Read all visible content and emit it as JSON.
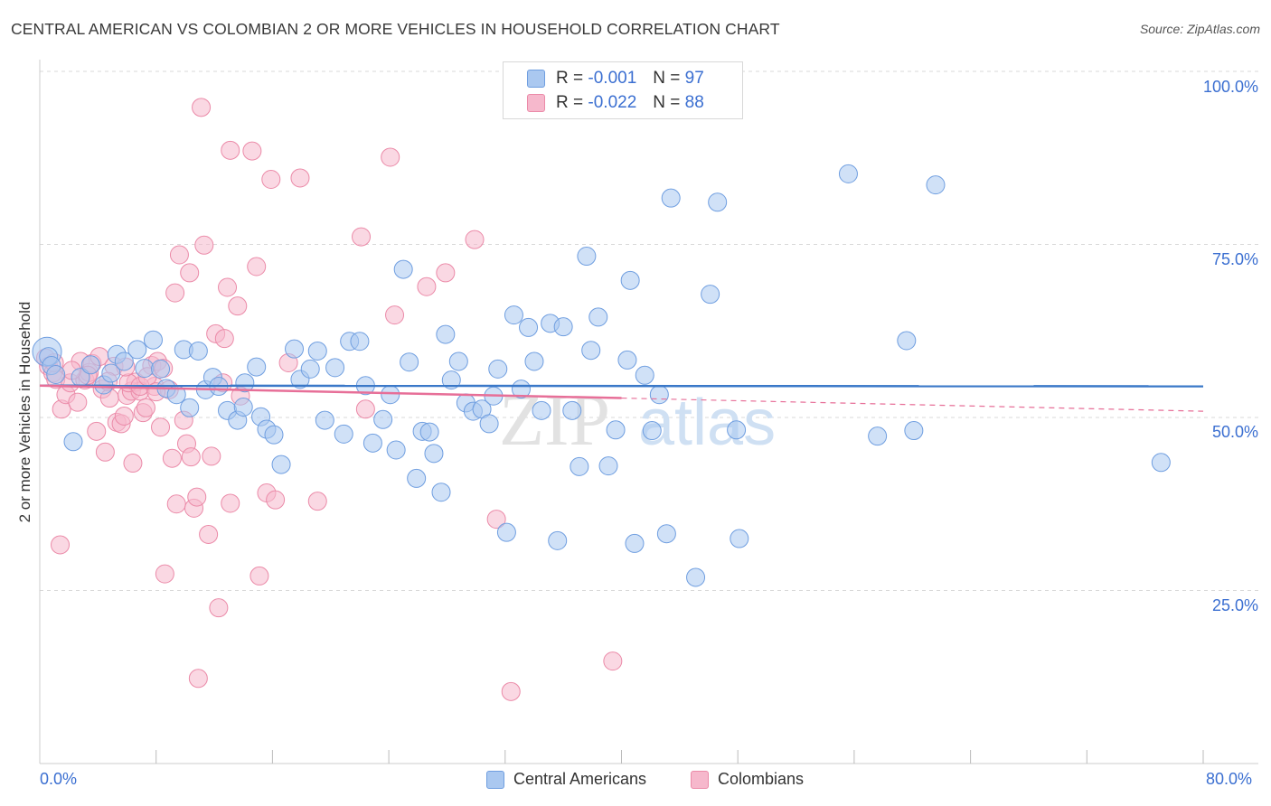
{
  "title": "CENTRAL AMERICAN VS COLOMBIAN 2 OR MORE VEHICLES IN HOUSEHOLD CORRELATION CHART",
  "source": "Source: ZipAtlas.com",
  "legend": {
    "rows": [
      {
        "r_label": "R = ",
        "r_value": "-0.001",
        "n_label": "N = ",
        "n_value": "97"
      },
      {
        "r_label": "R = ",
        "r_value": "-0.022",
        "n_label": "N = ",
        "n_value": "88"
      }
    ]
  },
  "watermark": {
    "part1": "ZIP",
    "part2": "atlas"
  },
  "colors": {
    "blue_fill": "#aac8f0",
    "blue_stroke": "#6f9ee0",
    "blue_line": "#3a78c8",
    "pink_fill": "#f6b8cc",
    "pink_stroke": "#eb8aa8",
    "pink_line": "#e76f98",
    "axis_text": "#3b6fd1",
    "grid": "#d9d9d9"
  },
  "chart_data": {
    "type": "scatter",
    "title": "CENTRAL AMERICAN VS COLOMBIAN 2 OR MORE VEHICLES IN HOUSEHOLD CORRELATION CHART",
    "xlabel": "",
    "ylabel": "2 or more Vehicles in Household",
    "xlim": [
      0,
      80
    ],
    "ylim": [
      0,
      100
    ],
    "x_tick_labels": [
      "0.0%",
      "80.0%"
    ],
    "y_tick_labels": [
      "100.0%",
      "75.0%",
      "50.0%",
      "25.0%"
    ],
    "y_tick_values": [
      100,
      75,
      50,
      25
    ],
    "grid": true,
    "legend_position": "top-center",
    "series": [
      {
        "name": "Central Americans",
        "color": "#aac8f0",
        "trend": {
          "x": [
            0,
            80
          ],
          "y": [
            54.6,
            54.5
          ]
        },
        "points": [
          [
            0.5,
            59.5
          ],
          [
            0.6,
            58.8
          ],
          [
            0.8,
            57.5
          ],
          [
            1.1,
            56.2
          ],
          [
            2.3,
            46.5
          ],
          [
            2.8,
            55.8
          ],
          [
            3.5,
            57.6
          ],
          [
            4.4,
            54.7
          ],
          [
            4.9,
            56.4
          ],
          [
            5.3,
            59.1
          ],
          [
            5.8,
            58.1
          ],
          [
            6.7,
            59.8
          ],
          [
            7.2,
            57.1
          ],
          [
            7.8,
            61.2
          ],
          [
            8.3,
            57.0
          ],
          [
            8.7,
            54.2
          ],
          [
            9.4,
            53.3
          ],
          [
            9.9,
            59.8
          ],
          [
            10.3,
            51.4
          ],
          [
            10.9,
            59.6
          ],
          [
            11.4,
            54.0
          ],
          [
            11.9,
            55.8
          ],
          [
            12.3,
            54.5
          ],
          [
            12.9,
            51.0
          ],
          [
            13.6,
            49.6
          ],
          [
            14.0,
            51.5
          ],
          [
            14.9,
            57.3
          ],
          [
            15.2,
            50.1
          ],
          [
            15.6,
            48.3
          ],
          [
            16.1,
            47.5
          ],
          [
            16.6,
            43.2
          ],
          [
            17.5,
            59.9
          ],
          [
            17.9,
            55.5
          ],
          [
            18.6,
            57.0
          ],
          [
            19.1,
            59.6
          ],
          [
            19.6,
            49.6
          ],
          [
            20.3,
            57.2
          ],
          [
            20.9,
            47.6
          ],
          [
            21.3,
            61.0
          ],
          [
            22.0,
            61.0
          ],
          [
            22.4,
            54.6
          ],
          [
            22.9,
            46.3
          ],
          [
            23.6,
            49.7
          ],
          [
            24.1,
            53.3
          ],
          [
            24.5,
            45.3
          ],
          [
            25.0,
            71.4
          ],
          [
            25.4,
            58.0
          ],
          [
            25.9,
            41.2
          ],
          [
            26.3,
            48.0
          ],
          [
            26.8,
            47.9
          ],
          [
            27.1,
            44.8
          ],
          [
            27.6,
            39.2
          ],
          [
            27.9,
            62.0
          ],
          [
            28.3,
            55.4
          ],
          [
            28.8,
            58.1
          ],
          [
            29.3,
            52.1
          ],
          [
            29.8,
            50.9
          ],
          [
            30.4,
            51.2
          ],
          [
            30.9,
            49.1
          ],
          [
            31.2,
            53.1
          ],
          [
            31.5,
            57.0
          ],
          [
            32.1,
            33.4
          ],
          [
            32.6,
            64.8
          ],
          [
            33.1,
            54.1
          ],
          [
            33.6,
            63.0
          ],
          [
            34.0,
            58.1
          ],
          [
            34.5,
            51.0
          ],
          [
            35.1,
            63.6
          ],
          [
            35.6,
            32.2
          ],
          [
            36.0,
            63.1
          ],
          [
            36.6,
            51.0
          ],
          [
            37.1,
            42.9
          ],
          [
            37.6,
            73.3
          ],
          [
            37.9,
            59.7
          ],
          [
            38.4,
            64.5
          ],
          [
            39.1,
            43.0
          ],
          [
            39.6,
            48.2
          ],
          [
            40.4,
            58.3
          ],
          [
            40.6,
            69.8
          ],
          [
            40.9,
            31.8
          ],
          [
            41.6,
            56.1
          ],
          [
            42.1,
            48.1
          ],
          [
            42.6,
            53.3
          ],
          [
            43.1,
            33.2
          ],
          [
            43.4,
            81.7
          ],
          [
            45.1,
            26.9
          ],
          [
            46.1,
            67.8
          ],
          [
            46.6,
            81.1
          ],
          [
            47.9,
            48.2
          ],
          [
            48.1,
            32.5
          ],
          [
            55.6,
            85.2
          ],
          [
            57.6,
            47.3
          ],
          [
            59.6,
            61.1
          ],
          [
            60.1,
            48.1
          ],
          [
            61.6,
            83.6
          ],
          [
            77.1,
            43.5
          ],
          [
            14.1,
            55.0
          ]
        ],
        "sizes": [
          16,
          10,
          10,
          10,
          10,
          10,
          10,
          10,
          10,
          10,
          10,
          10,
          10,
          10,
          10,
          10,
          10,
          10,
          10,
          10,
          10,
          10,
          10,
          10,
          10,
          10,
          10,
          10,
          10,
          10,
          10,
          10,
          10,
          10,
          10,
          10,
          10,
          10,
          10,
          10,
          10,
          10,
          10,
          10,
          10,
          10,
          10,
          10,
          10,
          10,
          10,
          10,
          10,
          10,
          10,
          10,
          10,
          10,
          10,
          10,
          10,
          10,
          10,
          10,
          10,
          10,
          10,
          10,
          10,
          10,
          10,
          10,
          10,
          10,
          10,
          10,
          10,
          10,
          10,
          10,
          10,
          10,
          10,
          10,
          10,
          10,
          10,
          10,
          10,
          10,
          10,
          10,
          10,
          10,
          10,
          10,
          10
        ]
      },
      {
        "name": "Colombians",
        "color": "#f6b8cc",
        "trend": {
          "x": [
            0,
            40
          ],
          "y": [
            54.6,
            52.8
          ]
        },
        "trend_dashed": {
          "x": [
            40,
            80
          ],
          "y": [
            52.8,
            50.9
          ]
        },
        "points": [
          [
            0.4,
            58.6
          ],
          [
            0.6,
            57.4
          ],
          [
            0.9,
            56.4
          ],
          [
            1.1,
            55.5
          ],
          [
            1.4,
            31.6
          ],
          [
            1.5,
            51.2
          ],
          [
            1.8,
            53.3
          ],
          [
            2.1,
            55.0
          ],
          [
            2.6,
            52.2
          ],
          [
            2.8,
            58.1
          ],
          [
            3.1,
            55.4
          ],
          [
            3.4,
            56.5
          ],
          [
            3.6,
            57.8
          ],
          [
            3.9,
            48.0
          ],
          [
            4.1,
            58.8
          ],
          [
            4.3,
            54.1
          ],
          [
            4.5,
            45.0
          ],
          [
            4.8,
            52.8
          ],
          [
            5.1,
            57.4
          ],
          [
            5.3,
            49.3
          ],
          [
            5.6,
            49.1
          ],
          [
            5.8,
            50.2
          ],
          [
            6.0,
            53.2
          ],
          [
            6.3,
            53.8
          ],
          [
            6.4,
            43.4
          ],
          [
            6.6,
            55.1
          ],
          [
            6.9,
            53.8
          ],
          [
            7.1,
            50.7
          ],
          [
            7.3,
            51.4
          ],
          [
            7.7,
            57.5
          ],
          [
            7.9,
            54.5
          ],
          [
            8.1,
            58.1
          ],
          [
            8.3,
            48.6
          ],
          [
            8.5,
            57.1
          ],
          [
            8.6,
            27.4
          ],
          [
            8.9,
            54.0
          ],
          [
            9.1,
            44.1
          ],
          [
            9.3,
            68.0
          ],
          [
            9.4,
            37.5
          ],
          [
            9.6,
            73.5
          ],
          [
            9.9,
            49.6
          ],
          [
            10.1,
            46.2
          ],
          [
            10.3,
            70.9
          ],
          [
            10.4,
            44.3
          ],
          [
            10.6,
            36.9
          ],
          [
            10.8,
            38.5
          ],
          [
            10.9,
            12.3
          ],
          [
            11.1,
            94.8
          ],
          [
            11.3,
            74.9
          ],
          [
            11.6,
            33.1
          ],
          [
            11.8,
            44.4
          ],
          [
            12.1,
            62.1
          ],
          [
            12.3,
            22.5
          ],
          [
            12.7,
            61.4
          ],
          [
            12.9,
            68.8
          ],
          [
            13.1,
            88.6
          ],
          [
            13.1,
            37.6
          ],
          [
            13.6,
            66.1
          ],
          [
            13.8,
            53.1
          ],
          [
            14.6,
            88.5
          ],
          [
            14.9,
            71.8
          ],
          [
            15.1,
            27.1
          ],
          [
            15.6,
            39.1
          ],
          [
            15.9,
            84.4
          ],
          [
            16.2,
            38.1
          ],
          [
            17.1,
            57.9
          ],
          [
            17.9,
            84.6
          ],
          [
            19.1,
            37.9
          ],
          [
            22.1,
            76.1
          ],
          [
            22.4,
            51.2
          ],
          [
            24.1,
            87.6
          ],
          [
            24.4,
            64.8
          ],
          [
            26.6,
            68.9
          ],
          [
            27.9,
            70.9
          ],
          [
            29.9,
            75.7
          ],
          [
            31.4,
            35.3
          ],
          [
            32.4,
            10.4
          ],
          [
            39.4,
            14.8
          ],
          [
            6.1,
            55.0
          ],
          [
            6.9,
            54.5
          ],
          [
            3.3,
            56.1
          ],
          [
            4.7,
            55.2
          ],
          [
            5.9,
            57.3
          ],
          [
            7.4,
            55.9
          ],
          [
            2.2,
            56.8
          ],
          [
            1.0,
            57.9
          ],
          [
            12.6,
            55.0
          ],
          [
            8.0,
            53.7
          ]
        ],
        "sizes": [
          10,
          10,
          10,
          10,
          10,
          10,
          10,
          10,
          10,
          10,
          10,
          10,
          10,
          10,
          10,
          10,
          10,
          10,
          10,
          10,
          10,
          10,
          10,
          10,
          10,
          10,
          10,
          10,
          10,
          10,
          10,
          10,
          10,
          10,
          10,
          10,
          10,
          10,
          10,
          10,
          10,
          10,
          10,
          10,
          10,
          10,
          10,
          10,
          10,
          10,
          10,
          10,
          10,
          10,
          10,
          10,
          10,
          10,
          10,
          10,
          10,
          10,
          10,
          10,
          10,
          10,
          10,
          10,
          10,
          10,
          10,
          10,
          10,
          10,
          10,
          10,
          10,
          10,
          10,
          10,
          10,
          10,
          10,
          10,
          10,
          10,
          10,
          10
        ]
      }
    ]
  }
}
